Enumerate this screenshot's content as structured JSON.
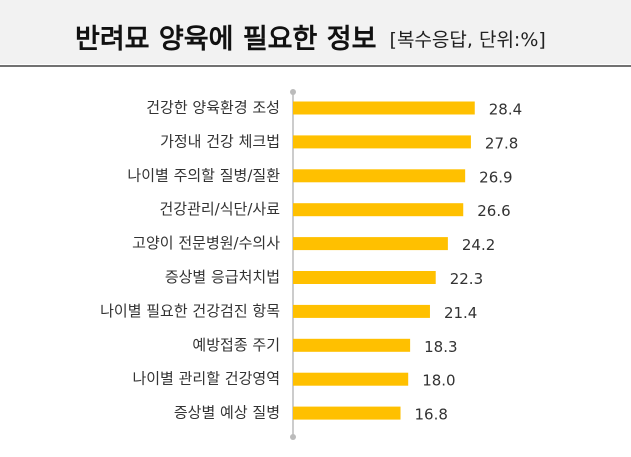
{
  "chart_data": {
    "type": "bar",
    "orientation": "horizontal",
    "title": "반려묘 양육에 필요한 정보",
    "subtitle": "[복수응답, 단위:%]",
    "categories": [
      "건강한 양육환경 조성",
      "가정내 건강 체크법",
      "나이별 주의할 질병/질환",
      "건강관리/식단/사료",
      "고양이 전문병원/수의사",
      "증상별 응급처치법",
      "나이별 필요한 건강검진 항목",
      "예방접종 주기",
      "나이별 관리할 건강영역",
      "증상별 예상 질병"
    ],
    "values": [
      28.4,
      27.8,
      26.9,
      26.6,
      24.2,
      22.3,
      21.4,
      18.3,
      18.0,
      16.8
    ],
    "value_labels": [
      "28.4",
      "27.8",
      "26.9",
      "26.6",
      "24.2",
      "22.3",
      "21.4",
      "18.3",
      "18.0",
      "16.8"
    ],
    "color": "#FFC000"
  }
}
